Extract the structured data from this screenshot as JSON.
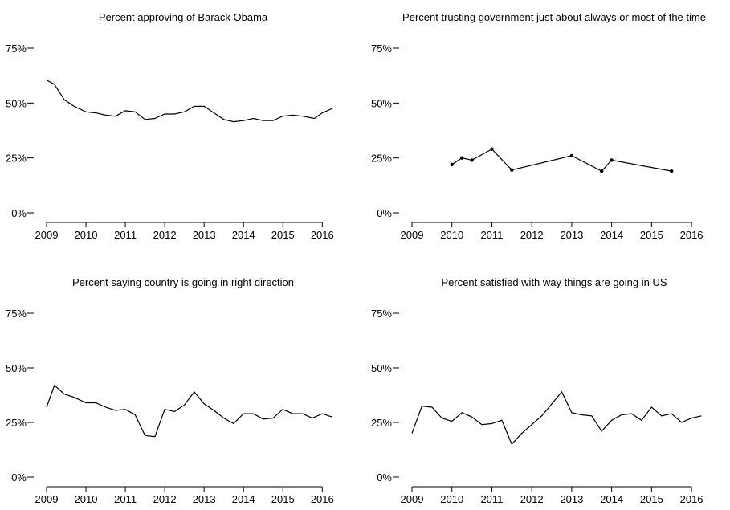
{
  "chart_data": [
    {
      "type": "line",
      "title": "Percent approving of Barack Obama",
      "xlabel": "",
      "ylabel": "",
      "xlim": [
        2009,
        2016.3
      ],
      "ylim": [
        0,
        75
      ],
      "xticks": [
        2009,
        2010,
        2011,
        2012,
        2013,
        2014,
        2015,
        2016
      ],
      "yticks": [
        0,
        25,
        50,
        75
      ],
      "ytick_labels": [
        "0%",
        "25%",
        "50%",
        "75%"
      ],
      "show_points": false,
      "grid": false,
      "series": [
        {
          "x": [
            2009.0,
            2009.2,
            2009.45,
            2009.7,
            2010.0,
            2010.25,
            2010.5,
            2010.75,
            2011.0,
            2011.25,
            2011.5,
            2011.75,
            2012.0,
            2012.25,
            2012.5,
            2012.75,
            2013.0,
            2013.25,
            2013.5,
            2013.75,
            2014.0,
            2014.25,
            2014.5,
            2014.75,
            2015.0,
            2015.25,
            2015.5,
            2015.8,
            2016.0,
            2016.25
          ],
          "y": [
            60.5,
            58.5,
            51.5,
            48.5,
            46,
            45.5,
            44.5,
            44,
            46.5,
            46,
            42.5,
            43,
            45,
            45,
            46,
            48.5,
            48.5,
            45.5,
            42.5,
            41.5,
            42,
            43,
            42,
            42,
            44,
            44.5,
            44,
            43,
            45.5,
            47.5
          ]
        }
      ]
    },
    {
      "type": "line",
      "title": "Percent trusting government just about always or most of the time",
      "xlabel": "",
      "ylabel": "",
      "xlim": [
        2009,
        2016.3
      ],
      "ylim": [
        0,
        75
      ],
      "xticks": [
        2009,
        2010,
        2011,
        2012,
        2013,
        2014,
        2015,
        2016
      ],
      "yticks": [
        0,
        25,
        50,
        75
      ],
      "ytick_labels": [
        "0%",
        "25%",
        "50%",
        "75%"
      ],
      "show_points": true,
      "grid": false,
      "series": [
        {
          "x": [
            2010.0,
            2010.25,
            2010.5,
            2011.0,
            2011.5,
            2013.0,
            2013.75,
            2014.0,
            2015.5
          ],
          "y": [
            22,
            25,
            24,
            29,
            19.5,
            26,
            19,
            24,
            19
          ]
        }
      ]
    },
    {
      "type": "line",
      "title": "Percent saying country is going in right direction",
      "xlabel": "",
      "ylabel": "",
      "xlim": [
        2009,
        2016.3
      ],
      "ylim": [
        0,
        75
      ],
      "xticks": [
        2009,
        2010,
        2011,
        2012,
        2013,
        2014,
        2015,
        2016
      ],
      "yticks": [
        0,
        25,
        50,
        75
      ],
      "ytick_labels": [
        "0%",
        "25%",
        "50%",
        "75%"
      ],
      "show_points": false,
      "grid": false,
      "series": [
        {
          "x": [
            2009.0,
            2009.2,
            2009.45,
            2009.7,
            2010.0,
            2010.25,
            2010.5,
            2010.75,
            2011.0,
            2011.25,
            2011.5,
            2011.75,
            2012.0,
            2012.25,
            2012.5,
            2012.75,
            2013.0,
            2013.25,
            2013.5,
            2013.75,
            2014.0,
            2014.25,
            2014.5,
            2014.75,
            2015.0,
            2015.25,
            2015.5,
            2015.75,
            2016.0,
            2016.25
          ],
          "y": [
            32,
            42,
            38,
            36.5,
            34,
            34,
            32,
            30.5,
            31,
            28.5,
            19,
            18.5,
            31,
            30,
            33,
            39,
            33.5,
            30.5,
            27,
            24.5,
            29,
            29,
            26.5,
            27,
            31,
            29,
            29,
            27,
            29,
            27.5
          ]
        }
      ]
    },
    {
      "type": "line",
      "title": "Percent satisfied with way things are going in US",
      "xlabel": "",
      "ylabel": "",
      "xlim": [
        2009,
        2016.3
      ],
      "ylim": [
        0,
        75
      ],
      "xticks": [
        2009,
        2010,
        2011,
        2012,
        2013,
        2014,
        2015,
        2016
      ],
      "yticks": [
        0,
        25,
        50,
        75
      ],
      "ytick_labels": [
        "0%",
        "25%",
        "50%",
        "75%"
      ],
      "show_points": false,
      "grid": false,
      "series": [
        {
          "x": [
            2009.0,
            2009.25,
            2009.5,
            2009.75,
            2010.0,
            2010.25,
            2010.5,
            2010.75,
            2011.0,
            2011.25,
            2011.5,
            2011.75,
            2012.25,
            2012.75,
            2013.0,
            2013.25,
            2013.5,
            2013.75,
            2014.0,
            2014.25,
            2014.5,
            2014.75,
            2015.0,
            2015.25,
            2015.5,
            2015.75,
            2016.0,
            2016.25
          ],
          "y": [
            20,
            32.5,
            32,
            27,
            25.5,
            29.5,
            27.5,
            24,
            24.5,
            26,
            15,
            20,
            28,
            39,
            29.5,
            28.5,
            28,
            21,
            26,
            28.5,
            29,
            26,
            32,
            28,
            29,
            25,
            27,
            28
          ]
        }
      ]
    }
  ]
}
